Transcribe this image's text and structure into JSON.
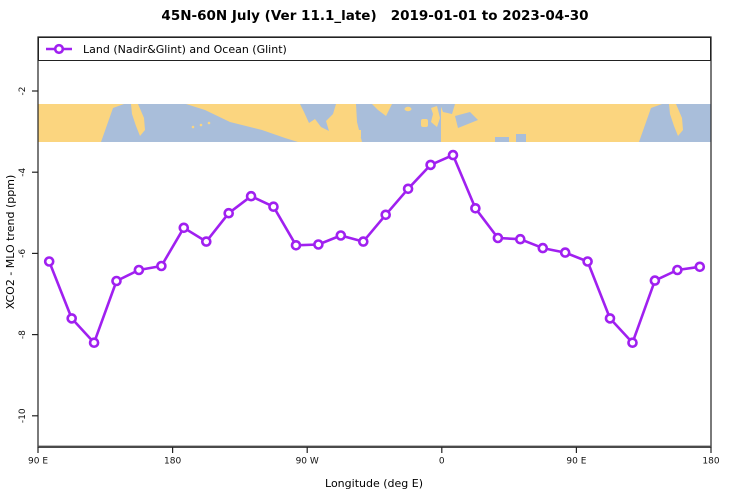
{
  "title": "45N-60N July (Ver 11.1_late)   2019-01-01 to 2023-04-30",
  "legend": {
    "label": "Land (Nadir&Glint) and Ocean (Glint)",
    "marker": "open-circle-on-line"
  },
  "axes": {
    "x_label": "Longitude (deg E)",
    "y_label": "XCO2 - MLO trend (ppm)",
    "x_ticks": [
      {
        "lon": 90,
        "label": "90 E"
      },
      {
        "lon": 180,
        "label": "180"
      },
      {
        "lon": 270,
        "label": "90 W"
      },
      {
        "lon": 360,
        "label": "0"
      },
      {
        "lon": 450,
        "label": "90 E"
      },
      {
        "lon": 540,
        "label": "180"
      }
    ],
    "y_ticks": [
      {
        "value": -2,
        "label": "-2"
      },
      {
        "value": -4,
        "label": "-4"
      },
      {
        "value": -6,
        "label": "-6"
      },
      {
        "value": -8,
        "label": "-8"
      },
      {
        "value": -10,
        "label": "-10"
      }
    ]
  },
  "colors": {
    "series": "#A020F0",
    "map_land": "#FBD57F",
    "map_ocean": "#A9BEDA",
    "frame": "#222222",
    "axis_baseline": "#4a4a4a"
  },
  "map_strip": {
    "description": "world coastline band for latitudes 45N-60N drawn across the plot",
    "lat_band": "45N-60N"
  },
  "chart_data": {
    "type": "line",
    "title": "45N-60N July (Ver 11.1_late)   2019-01-01 to 2023-04-30",
    "xlabel": "Longitude (deg E)",
    "ylabel": "XCO2 - MLO trend (ppm)",
    "series_name": "Land (Nadir&Glint) and Ocean (Glint)",
    "x_axis_range_deg_east": [
      90,
      540
    ],
    "ylim": [
      -10.8,
      -1.3
    ],
    "grid": false,
    "legend_position": "top-left full-width box",
    "marker": "open-circle",
    "x_deg_east": [
      97.5,
      112.5,
      127.5,
      142.5,
      157.5,
      172.5,
      187.5,
      202.5,
      217.5,
      232.5,
      247.5,
      262.5,
      277.5,
      292.5,
      307.5,
      322.5,
      337.5,
      352.5,
      367.5,
      382.5,
      397.5,
      412.5,
      427.5,
      442.5,
      457.5,
      472.5,
      487.5,
      502.5,
      517.5,
      532.5
    ],
    "values": [
      -6.2,
      -7.6,
      -8.2,
      -6.68,
      -6.41,
      -6.31,
      -5.37,
      -5.71,
      -5.01,
      -4.59,
      -4.85,
      -5.8,
      -5.78,
      -5.56,
      -5.71,
      -5.05,
      -4.41,
      -3.82,
      -3.58,
      -4.89,
      -5.62,
      -5.65,
      -5.87,
      -5.98,
      -6.2,
      -7.6,
      -8.2,
      -6.67,
      -6.41,
      -6.33
    ]
  }
}
